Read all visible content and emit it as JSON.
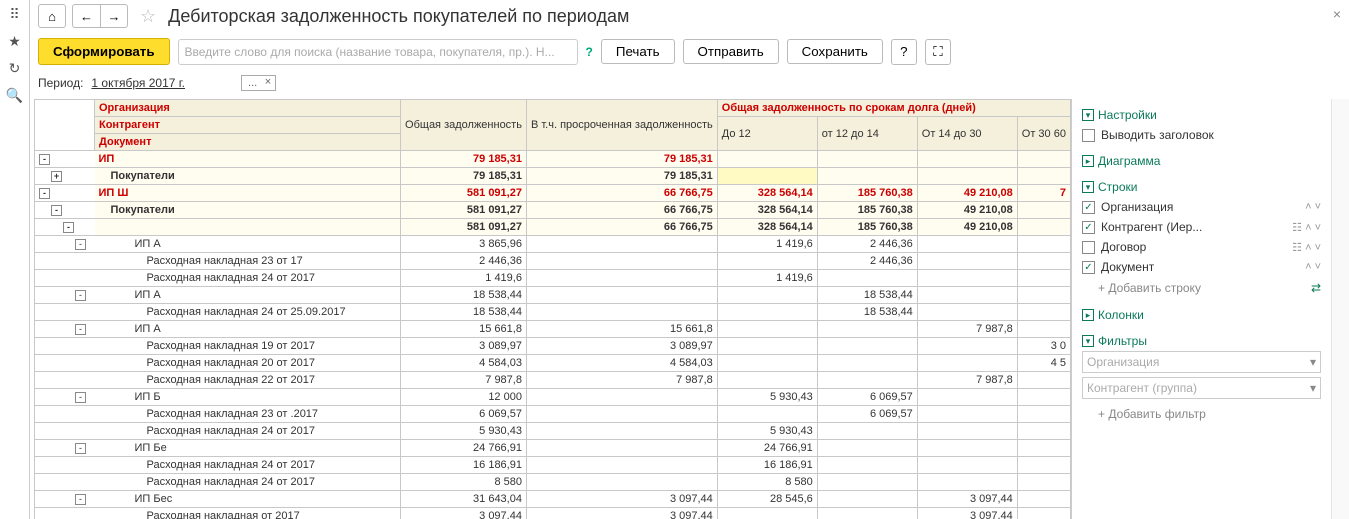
{
  "title": "Дебиторская задолженность покупателей по периодам",
  "toolbar": {
    "form": "Сформировать",
    "search_placeholder": "Введите слово для поиска (название товара, покупателя, пр.). Н...",
    "print": "Печать",
    "send": "Отправить",
    "save": "Сохранить"
  },
  "period": {
    "label": "Период:",
    "value": "1 октября 2017 г.",
    "tag": "..."
  },
  "headers": {
    "org": "Организация",
    "contr": "Контрагент",
    "doc": "Документ",
    "total": "Общая задолженность",
    "overdue": "В т.ч. просроченная задолженность",
    "byterm": "Общая задолженность по срокам долга (дней)",
    "c1": "До 12",
    "c2": "от 12 до 14",
    "c3": "От 14 до 30",
    "c4": "От 30 60"
  },
  "side": {
    "settings": "Настройки",
    "showTitle": "Выводить заголовок",
    "diagram": "Диаграмма",
    "rows": "Строки",
    "r_org": "Организация",
    "r_contr": "Контрагент (Иер...",
    "r_dog": "Договор",
    "r_doc": "Документ",
    "addRow": "+ Добавить строку",
    "cols": "Колонки",
    "filters": "Фильтры",
    "f_org": "Организация",
    "f_contr": "Контрагент (группа)",
    "addFilter": "+ Добавить фильтр"
  },
  "rows": [
    {
      "type": "org",
      "lvl": 0,
      "tog": "-",
      "label": "ИП",
      "total": "79 185,31",
      "overdue": "79 185,31",
      "c1": "",
      "c2": "",
      "c3": "",
      "c4": ""
    },
    {
      "type": "grp",
      "lvl": 1,
      "tog": "+",
      "label": "Покупатели",
      "total": "79 185,31",
      "overdue": "79 185,31",
      "c1": "",
      "c2": "",
      "c3": "",
      "c4": "",
      "hl": true
    },
    {
      "type": "org",
      "lvl": 0,
      "tog": "-",
      "label": "ИП Ш",
      "total": "581 091,27",
      "overdue": "66 766,75",
      "c1": "328 564,14",
      "c2": "185 760,38",
      "c3": "49 210,08",
      "c4": "7"
    },
    {
      "type": "grp",
      "lvl": 1,
      "tog": "-",
      "label": "Покупатели",
      "total": "581 091,27",
      "overdue": "66 766,75",
      "c1": "328 564,14",
      "c2": "185 760,38",
      "c3": "49 210,08",
      "c4": ""
    },
    {
      "type": "sub",
      "lvl": 2,
      "tog": "-",
      "label": "",
      "total": "581 091,27",
      "overdue": "66 766,75",
      "c1": "328 564,14",
      "c2": "185 760,38",
      "c3": "49 210,08",
      "c4": ""
    },
    {
      "type": "ip",
      "lvl": 3,
      "tog": "-",
      "label": "ИП А",
      "total": "3 865,96",
      "overdue": "",
      "c1": "1 419,6",
      "c2": "2 446,36",
      "c3": "",
      "c4": ""
    },
    {
      "type": "doc",
      "lvl": 4,
      "tog": "",
      "label": "Расходная накладная 23      от             17",
      "total": "2 446,36",
      "overdue": "",
      "c1": "",
      "c2": "2 446,36",
      "c3": "",
      "c4": ""
    },
    {
      "type": "doc",
      "lvl": 4,
      "tog": "",
      "label": "Расходная накладная 24      от        2017",
      "total": "1 419,6",
      "overdue": "",
      "c1": "1 419,6",
      "c2": "",
      "c3": "",
      "c4": ""
    },
    {
      "type": "ip",
      "lvl": 3,
      "tog": "-",
      "label": "ИП А",
      "total": "18 538,44",
      "overdue": "",
      "c1": "",
      "c2": "18 538,44",
      "c3": "",
      "c4": ""
    },
    {
      "type": "doc",
      "lvl": 4,
      "tog": "",
      "label": "Расходная накладная 24      от 25.09.2017",
      "total": "18 538,44",
      "overdue": "",
      "c1": "",
      "c2": "18 538,44",
      "c3": "",
      "c4": ""
    },
    {
      "type": "ip",
      "lvl": 3,
      "tog": "-",
      "label": "ИП А",
      "total": "15 661,8",
      "overdue": "15 661,8",
      "c1": "",
      "c2": "",
      "c3": "7 987,8",
      "c4": ""
    },
    {
      "type": "doc",
      "lvl": 4,
      "tog": "",
      "label": "Расходная накладная 19      от        2017",
      "total": "3 089,97",
      "overdue": "3 089,97",
      "c1": "",
      "c2": "",
      "c3": "",
      "c4": "3 0"
    },
    {
      "type": "doc",
      "lvl": 4,
      "tog": "",
      "label": "Расходная накладная 20      от        2017",
      "total": "4 584,03",
      "overdue": "4 584,03",
      "c1": "",
      "c2": "",
      "c3": "",
      "c4": "4 5"
    },
    {
      "type": "doc",
      "lvl": 4,
      "tog": "",
      "label": "Расходная накладная 22      от        2017",
      "total": "7 987,8",
      "overdue": "7 987,8",
      "c1": "",
      "c2": "",
      "c3": "7 987,8",
      "c4": ""
    },
    {
      "type": "ip",
      "lvl": 3,
      "tog": "-",
      "label": "ИП Б",
      "total": "12 000",
      "overdue": "",
      "c1": "5 930,43",
      "c2": "6 069,57",
      "c3": "",
      "c4": ""
    },
    {
      "type": "doc",
      "lvl": 4,
      "tog": "",
      "label": "Расходная накладная 23      от      .2017",
      "total": "6 069,57",
      "overdue": "",
      "c1": "",
      "c2": "6 069,57",
      "c3": "",
      "c4": ""
    },
    {
      "type": "doc",
      "lvl": 4,
      "tog": "",
      "label": "Расходная накладная 24      от        2017",
      "total": "5 930,43",
      "overdue": "",
      "c1": "5 930,43",
      "c2": "",
      "c3": "",
      "c4": ""
    },
    {
      "type": "ip",
      "lvl": 3,
      "tog": "-",
      "label": "ИП Бе",
      "total": "24 766,91",
      "overdue": "",
      "c1": "24 766,91",
      "c2": "",
      "c3": "",
      "c4": ""
    },
    {
      "type": "doc",
      "lvl": 4,
      "tog": "",
      "label": "Расходная накладная 24      от        2017",
      "total": "16 186,91",
      "overdue": "",
      "c1": "16 186,91",
      "c2": "",
      "c3": "",
      "c4": ""
    },
    {
      "type": "doc",
      "lvl": 4,
      "tog": "",
      "label": "Расходная накладная 24      от        2017",
      "total": "8 580",
      "overdue": "",
      "c1": "8 580",
      "c2": "",
      "c3": "",
      "c4": ""
    },
    {
      "type": "ip",
      "lvl": 3,
      "tog": "-",
      "label": "ИП Бес",
      "total": "31 643,04",
      "overdue": "3 097,44",
      "c1": "28 545,6",
      "c2": "",
      "c3": "3 097,44",
      "c4": ""
    },
    {
      "type": "doc",
      "lvl": 4,
      "tog": "",
      "label": "Расходная накладная       от             2017",
      "total": "3 097,44",
      "overdue": "3 097,44",
      "c1": "",
      "c2": "",
      "c3": "3 097,44",
      "c4": ""
    },
    {
      "type": "doc",
      "lvl": 4,
      "tog": "",
      "label": "Расходная накладная       от",
      "total": "28 545,6",
      "overdue": "",
      "c1": "28 545,6",
      "c2": "",
      "c3": "",
      "c4": ""
    }
  ]
}
